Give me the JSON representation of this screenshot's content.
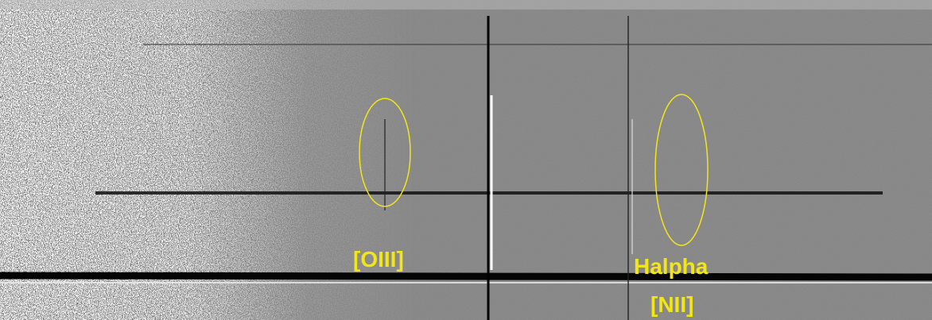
{
  "annotations": [
    {
      "label": "[OIII]"
    },
    {
      "label": "Halpha"
    },
    {
      "label": "[NII]"
    }
  ]
}
